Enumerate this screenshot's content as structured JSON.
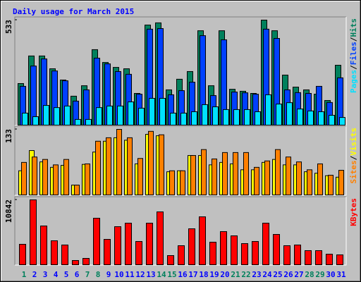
{
  "title": "Daily usage for March 2015",
  "legend_separator": "/",
  "chart_data": [
    {
      "type": "bar",
      "ylim": [
        0,
        533
      ],
      "yticks": [
        533
      ],
      "series": [
        {
          "name": "Hits",
          "color": "#00805c",
          "values": [
            211,
            351,
            351,
            286,
            229,
            147,
            200,
            383,
            318,
            293,
            286,
            161,
            508,
            519,
            179,
            233,
            272,
            479,
            200,
            479,
            182,
            172,
            161,
            533,
            479,
            254,
            193,
            179,
            157,
            125,
            304
          ]
        },
        {
          "name": "Files",
          "color": "#0040ff",
          "values": [
            197,
            300,
            336,
            275,
            225,
            122,
            179,
            340,
            311,
            272,
            258,
            157,
            487,
            490,
            154,
            175,
            218,
            454,
            150,
            433,
            168,
            164,
            157,
            487,
            440,
            179,
            165,
            161,
            197,
            115,
            240
          ]
        },
        {
          "name": "Pages",
          "color": "#00e0ff",
          "values": [
            61,
            43,
            100,
            89,
            97,
            29,
            29,
            89,
            97,
            97,
            118,
            86,
            136,
            136,
            61,
            61,
            68,
            104,
            93,
            79,
            79,
            79,
            68,
            154,
            107,
            114,
            82,
            72,
            68,
            50,
            39
          ]
        }
      ]
    },
    {
      "type": "bar",
      "ylim": [
        0,
        133
      ],
      "yticks": [
        133
      ],
      "series": [
        {
          "name": "Visits",
          "color": "#ffff00",
          "values": [
            49,
            90,
            67,
            56,
            60,
            20,
            62,
            87,
            109,
            116,
            111,
            63,
            123,
            120,
            47,
            49,
            80,
            80,
            61,
            66,
            63,
            51,
            51,
            66,
            72,
            61,
            61,
            47,
            44,
            39,
            36
          ]
        },
        {
          "name": "Sites",
          "color": "#ff8000",
          "values": [
            66,
            77,
            72,
            61,
            72,
            20,
            63,
            109,
            116,
            133,
            116,
            74,
            129,
            122,
            49,
            49,
            80,
            92,
            73,
            86,
            86,
            86,
            56,
            69,
            92,
            77,
            67,
            51,
            63,
            40,
            50
          ]
        }
      ]
    },
    {
      "type": "bar",
      "ylim": [
        0,
        10842
      ],
      "yticks": [
        10842
      ],
      "series": [
        {
          "name": "KBytes",
          "color": "#ff0000",
          "values": [
            3416,
            10842,
            6479,
            4005,
            3298,
            707,
            1060,
            7775,
            4241,
            6361,
            6950,
            3887,
            6950,
            8835,
            1531,
            3181,
            6008,
            8010,
            3770,
            5537,
            4830,
            3534,
            3887,
            6950,
            5065,
            3181,
            3298,
            2356,
            2356,
            1767,
            1649
          ]
        }
      ],
      "categories": [
        "1",
        "2",
        "3",
        "4",
        "5",
        "6",
        "7",
        "8",
        "9",
        "10",
        "11",
        "12",
        "13",
        "14",
        "15",
        "16",
        "17",
        "18",
        "19",
        "20",
        "21",
        "22",
        "23",
        "24",
        "25",
        "26",
        "27",
        "28",
        "29",
        "30",
        "31"
      ],
      "category_colors": [
        "#00805c",
        "#0000ff",
        "#0000ff",
        "#0000ff",
        "#0000ff",
        "#0000ff",
        "#00805c",
        "#00805c",
        "#0000ff",
        "#0000ff",
        "#0000ff",
        "#0000ff",
        "#0000ff",
        "#00805c",
        "#00805c",
        "#0000ff",
        "#0000ff",
        "#0000ff",
        "#0000ff",
        "#0000ff",
        "#00805c",
        "#00805c",
        "#0000ff",
        "#0000ff",
        "#0000ff",
        "#0000ff",
        "#0000ff",
        "#00805c",
        "#00805c",
        "#0000ff",
        "#0000ff"
      ]
    }
  ]
}
